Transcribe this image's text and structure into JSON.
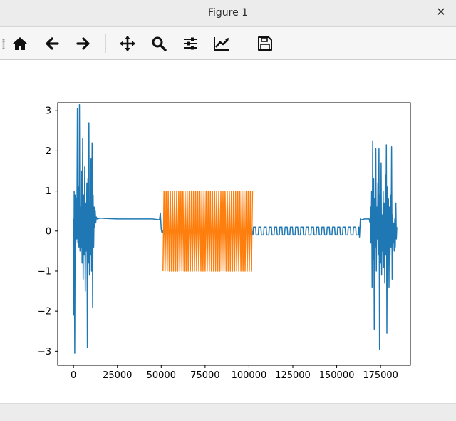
{
  "window": {
    "title": "Figure 1",
    "close_glyph": "✕"
  },
  "toolbar": {
    "buttons": [
      {
        "name": "home-icon"
      },
      {
        "name": "back-icon"
      },
      {
        "name": "forward-icon"
      },
      {
        "name": "pan-icon"
      },
      {
        "name": "zoom-icon"
      },
      {
        "name": "configure-subplots-icon"
      },
      {
        "name": "edit-axis-icon"
      },
      {
        "name": "save-icon"
      }
    ]
  },
  "chart_data": {
    "type": "line",
    "title": "",
    "xlabel": "",
    "ylabel": "",
    "xlim": [
      -9000,
      192000
    ],
    "ylim": [
      -3.35,
      3.2
    ],
    "xticks": [
      0,
      25000,
      50000,
      75000,
      100000,
      125000,
      150000,
      175000
    ],
    "xtick_labels": [
      "0",
      "25000",
      "50000",
      "75000",
      "100000",
      "125000",
      "150000",
      "175000"
    ],
    "yticks": [
      3,
      2,
      1,
      0,
      -1,
      -2,
      -3
    ],
    "ytick_labels": [
      "3",
      "2",
      "1",
      "0",
      "−1",
      "−2",
      "−3"
    ],
    "grid": false,
    "legend": "none",
    "series": [
      {
        "color": "#1f77b4",
        "x": [
          0,
          200,
          400,
          700,
          1000,
          1300,
          1600,
          1900,
          2200,
          2500,
          2800,
          3100,
          3400,
          3700,
          4000,
          4300,
          4600,
          4900,
          5200,
          5500,
          5800,
          6100,
          6400,
          6700,
          7000,
          7300,
          7600,
          7900,
          8200,
          8500,
          8800,
          9100,
          9400,
          9700,
          10000,
          10300,
          10600,
          10900,
          11200,
          11500,
          11800,
          12100,
          12400,
          12700,
          13000,
          13500,
          15000,
          20000,
          25000,
          30000,
          35000,
          40000,
          45000,
          49000,
          49500,
          50000,
          50500,
          51000,
          51500,
          52000,
          52500,
          100000,
          100500,
          101000,
          101500,
          102000,
          102300,
          102600,
          103800,
          104100,
          105300,
          105600,
          106800,
          107100,
          108300,
          108600,
          109800,
          110100,
          111300,
          111600,
          112800,
          113100,
          114300,
          114600,
          115800,
          116100,
          117300,
          117600,
          118800,
          119100,
          120300,
          120600,
          121800,
          122100,
          123300,
          123600,
          124800,
          125100,
          126300,
          126600,
          127800,
          128100,
          129300,
          129600,
          130800,
          131100,
          132300,
          132600,
          133800,
          134100,
          135300,
          135600,
          136800,
          137100,
          138300,
          138600,
          139800,
          140100,
          141300,
          141600,
          142800,
          143100,
          144300,
          144600,
          145800,
          146100,
          147300,
          147600,
          148800,
          149100,
          150300,
          150600,
          151800,
          152100,
          153300,
          153600,
          154800,
          155100,
          156300,
          156600,
          157800,
          158100,
          159300,
          159600,
          160800,
          161100,
          162300,
          162600,
          163000,
          163500,
          164000,
          166000,
          168000,
          168500,
          169000,
          169300,
          169600,
          169900,
          170200,
          170500,
          170800,
          171100,
          171400,
          171700,
          172000,
          172300,
          172600,
          172900,
          173200,
          173500,
          173800,
          174100,
          174400,
          174700,
          175000,
          175300,
          175600,
          175900,
          176200,
          176500,
          176800,
          177100,
          177400,
          177700,
          178000,
          178300,
          178600,
          178900,
          179200,
          179500,
          179800,
          180100,
          180400,
          180700,
          181000,
          181300,
          181600,
          181900,
          182200,
          182500,
          182800,
          183100,
          183400,
          183700,
          184000,
          184300
        ],
        "y": [
          0.3,
          -2.1,
          1.0,
          -3.05,
          0.9,
          -0.3,
          0.8,
          -0.2,
          3.05,
          -0.3,
          1.1,
          -0.4,
          3.15,
          -0.5,
          0.6,
          -0.4,
          1.5,
          -0.8,
          2.3,
          -1.2,
          0.9,
          -0.6,
          1.6,
          -1.5,
          0.7,
          -0.5,
          1.2,
          -2.9,
          1.3,
          -0.8,
          2.7,
          -1.1,
          0.6,
          -0.6,
          1.8,
          -1.0,
          2.2,
          -1.9,
          0.9,
          -0.4,
          0.6,
          0.1,
          0.5,
          0.2,
          0.35,
          0.3,
          0.32,
          0.31,
          0.3,
          0.3,
          0.3,
          0.3,
          0.3,
          0.28,
          0.45,
          0.05,
          -0.05,
          0.02,
          -0.1,
          0.0,
          -0.05,
          -0.05,
          0.1,
          -0.1,
          0.05,
          -0.05,
          -0.1,
          0.1,
          0.1,
          -0.1,
          -0.1,
          0.1,
          0.1,
          -0.1,
          -0.1,
          0.1,
          0.1,
          -0.1,
          -0.1,
          0.1,
          0.1,
          -0.1,
          -0.1,
          0.1,
          0.1,
          -0.1,
          -0.1,
          0.1,
          0.1,
          -0.1,
          -0.1,
          0.1,
          0.1,
          -0.1,
          -0.1,
          0.1,
          0.1,
          -0.1,
          -0.1,
          0.1,
          0.1,
          -0.1,
          -0.1,
          0.1,
          0.1,
          -0.1,
          -0.1,
          0.1,
          0.1,
          -0.1,
          -0.1,
          0.1,
          0.1,
          -0.1,
          -0.1,
          0.1,
          0.1,
          -0.1,
          -0.1,
          0.1,
          0.1,
          -0.1,
          -0.1,
          0.1,
          0.1,
          -0.1,
          -0.1,
          0.1,
          0.1,
          -0.1,
          -0.1,
          0.1,
          0.1,
          -0.1,
          -0.1,
          0.1,
          0.1,
          -0.1,
          -0.1,
          0.1,
          0.1,
          -0.1,
          -0.1,
          0.1,
          0.1,
          -0.1,
          -0.1,
          0.1,
          -0.15,
          0.3,
          0.28,
          0.3,
          0.3,
          0.3,
          0.2,
          0.6,
          -0.3,
          1.0,
          -1.4,
          2.25,
          -0.7,
          1.3,
          -2.45,
          0.8,
          -0.4,
          2.05,
          -1.0,
          0.6,
          -0.2,
          1.2,
          -0.6,
          2.05,
          -2.95,
          0.9,
          -0.8,
          1.7,
          -1.1,
          0.4,
          -0.5,
          1.0,
          -0.9,
          0.7,
          -1.3,
          1.4,
          -0.6,
          2.15,
          -2.55,
          1.1,
          -0.5,
          0.8,
          -1.4,
          0.6,
          -0.6,
          0.9,
          -0.4,
          2.1,
          -1.2,
          0.4,
          -0.3,
          0.2,
          -0.5,
          0.3,
          -0.4,
          0.7,
          -0.2,
          0.1
        ]
      },
      {
        "color": "#ff7f0e",
        "x": [
          51000,
          51600,
          52200,
          52800,
          53400,
          54000,
          54600,
          55200,
          55800,
          56400,
          57000,
          57600,
          58200,
          58800,
          59400,
          60000,
          60600,
          61200,
          61800,
          62400,
          63000,
          63600,
          64200,
          64800,
          65400,
          66000,
          66600,
          67200,
          67800,
          68400,
          69000,
          69600,
          70200,
          70800,
          71400,
          72000,
          72600,
          73200,
          73800,
          74400,
          75000,
          75600,
          76200,
          76800,
          77400,
          78000,
          78600,
          79200,
          79800,
          80400,
          81000,
          81600,
          82200,
          82800,
          83400,
          84000,
          84600,
          85200,
          85800,
          86400,
          87000,
          87600,
          88200,
          88800,
          89400,
          90000,
          90600,
          91200,
          91800,
          92400,
          93000,
          93600,
          94200,
          94800,
          95400,
          96000,
          96600,
          97200,
          97800,
          98400,
          99000,
          99600,
          100200,
          100800,
          101400,
          102000
        ],
        "y": [
          -1,
          1,
          -1,
          1,
          -1,
          1,
          -1,
          1,
          -1,
          1,
          -1,
          1,
          -1,
          1,
          -1,
          1,
          -1,
          1,
          -1,
          1,
          -1,
          1,
          -1,
          1,
          -1,
          1,
          -1,
          1,
          -1,
          1,
          -1,
          1,
          -1,
          1,
          -1,
          1,
          -1,
          1,
          -1,
          1,
          -1,
          1,
          -1,
          1,
          -1,
          1,
          -1,
          1,
          -1,
          1,
          -1,
          1,
          -1,
          1,
          -1,
          1,
          -1,
          1,
          -1,
          1,
          -1,
          1,
          -1,
          1,
          -1,
          1,
          -1,
          1,
          -1,
          1,
          -1,
          1,
          -1,
          1,
          -1,
          1,
          -1,
          1,
          -1,
          1,
          -1,
          1,
          -1,
          1,
          -1,
          1
        ]
      }
    ]
  }
}
